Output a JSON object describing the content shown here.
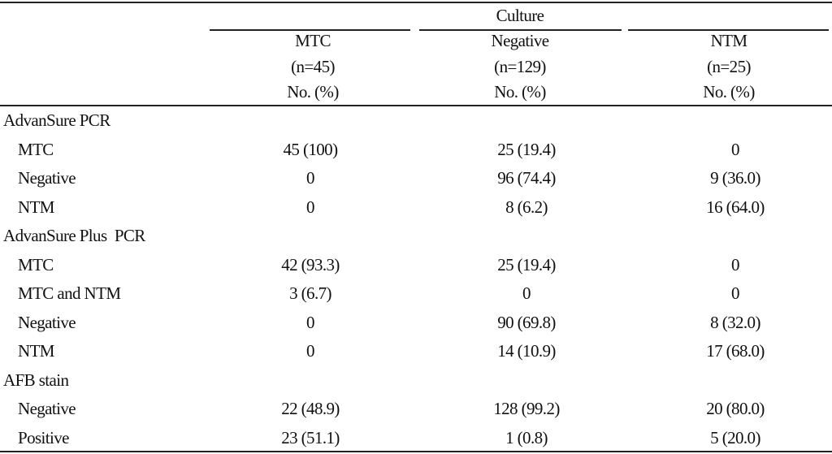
{
  "table": {
    "spanner": "Culture",
    "columns": [
      {
        "name": "MTC",
        "n": "(n=45)",
        "unit": "No. (%)"
      },
      {
        "name": "Negative",
        "n": "(n=129)",
        "unit": "No. (%)"
      },
      {
        "name": "NTM",
        "n": "(n=25)",
        "unit": "No. (%)"
      }
    ],
    "sections": [
      {
        "label": "AdvanSure PCR",
        "rows": [
          [
            "MTC",
            "45 (100)",
            "25 (19.4)",
            "0"
          ],
          [
            "Negative",
            "0",
            "96 (74.4)",
            "9 (36.0)"
          ],
          [
            "NTM",
            "0",
            "8 (6.2)",
            "16 (64.0)"
          ]
        ]
      },
      {
        "label": "AdvanSure Plus  PCR",
        "rows": [
          [
            "MTC",
            "42 (93.3)",
            "25 (19.4)",
            "0"
          ],
          [
            "MTC and NTM",
            "3 (6.7)",
            "0",
            "0"
          ],
          [
            "Negative",
            "0",
            "90 (69.8)",
            "8 (32.0)"
          ],
          [
            "NTM",
            "0",
            "14 (10.9)",
            "17 (68.0)"
          ]
        ]
      },
      {
        "label": "AFB stain",
        "rows": [
          [
            "Negative",
            "22 (48.9)",
            "128 (99.2)",
            "20 (80.0)"
          ],
          [
            "Positive",
            "23 (51.1)",
            "1 (0.8)",
            "5 (20.0)"
          ]
        ]
      }
    ]
  }
}
